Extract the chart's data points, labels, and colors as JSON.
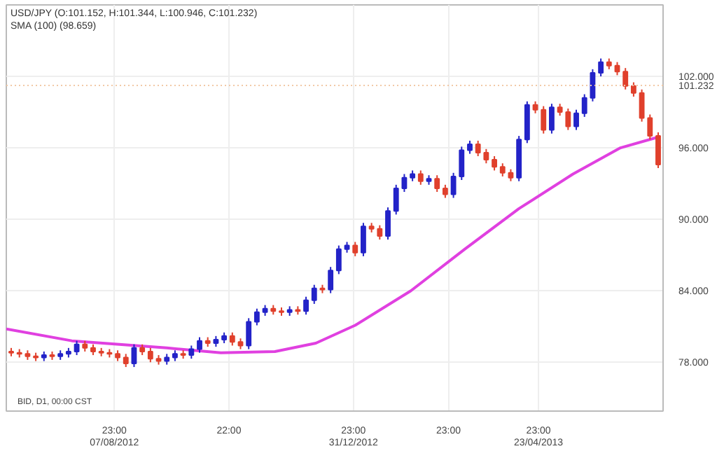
{
  "chart_data": {
    "type": "candlestick",
    "title": "USD/JPY (O:101.152, H:101.344, L:100.946, C:101.232)",
    "subtitle": "SMA (100) (98.659)",
    "annotations": [
      "BID, D1, 00:00 CST"
    ],
    "xlim": [
      "2012-06-03",
      "2013-07-09"
    ],
    "xticks": [
      {
        "value": "2012-08-07T23:00",
        "label": "23:00\n07/08/2012"
      },
      {
        "value": "2012-10-16T22:00",
        "label": "22:00"
      },
      {
        "value": "2012-12-31T23:00",
        "label": "23:00\n31/12/2012"
      },
      {
        "value": "2013-02-27T23:00",
        "label": "23:00"
      },
      {
        "value": "2013-04-23T23:00",
        "label": "23:00\n23/04/2013"
      }
    ],
    "ylim": [
      73.9,
      108
    ],
    "yticks": [
      {
        "value": 78,
        "label": "78.000"
      },
      {
        "value": 84,
        "label": "84.000"
      },
      {
        "value": 90,
        "label": "90.000"
      },
      {
        "value": 96,
        "label": "96.000"
      },
      {
        "value": 102,
        "label": "102.000"
      }
    ],
    "grid": true,
    "ref_lines": [
      {
        "axis": "y",
        "value": 101.232,
        "label": "101.232",
        "color": "#f2c9a6",
        "line_style": "dotted"
      }
    ],
    "series": [
      {
        "x": [
          "2012-06-06",
          "2012-06-11",
          "2012-06-16",
          "2012-06-21",
          "2012-06-26",
          "2012-07-01",
          "2012-07-06",
          "2012-07-11",
          "2012-07-16",
          "2012-07-21",
          "2012-07-26",
          "2012-07-31",
          "2012-08-05",
          "2012-08-10",
          "2012-08-15",
          "2012-08-20",
          "2012-08-25",
          "2012-08-30",
          "2012-09-04",
          "2012-09-09",
          "2012-09-14",
          "2012-09-19",
          "2012-09-24",
          "2012-09-29",
          "2012-10-04",
          "2012-10-09",
          "2012-10-14",
          "2012-10-19",
          "2012-10-24",
          "2012-10-29",
          "2012-11-03",
          "2012-11-08",
          "2012-11-13",
          "2012-11-18",
          "2012-11-23",
          "2012-11-28",
          "2012-12-03",
          "2012-12-08",
          "2012-12-13",
          "2012-12-18",
          "2012-12-23",
          "2012-12-28",
          "2013-01-02",
          "2013-01-07",
          "2013-01-12",
          "2013-01-17",
          "2013-01-22",
          "2013-01-27",
          "2013-02-01",
          "2013-02-06",
          "2013-02-11",
          "2013-02-16",
          "2013-02-21",
          "2013-02-26",
          "2013-03-03",
          "2013-03-08",
          "2013-03-13",
          "2013-03-18",
          "2013-03-23",
          "2013-03-28",
          "2013-04-02",
          "2013-04-07",
          "2013-04-12",
          "2013-04-17",
          "2013-04-22",
          "2013-04-27",
          "2013-05-02",
          "2013-05-07",
          "2013-05-12",
          "2013-05-17",
          "2013-05-22",
          "2013-05-27",
          "2013-06-01",
          "2013-06-06",
          "2013-06-11",
          "2013-06-16",
          "2013-06-21",
          "2013-06-26",
          "2013-07-01",
          "2013-07-06"
        ],
        "ohlc": [
          [
            78.9,
            79.2,
            78.5,
            78.8
          ],
          [
            78.8,
            79.1,
            78.4,
            78.7
          ],
          [
            78.7,
            79.0,
            78.2,
            78.5
          ],
          [
            78.5,
            78.8,
            78.1,
            78.4
          ],
          [
            78.4,
            78.9,
            78.1,
            78.6
          ],
          [
            78.6,
            78.9,
            78.2,
            78.5
          ],
          [
            78.5,
            79.0,
            78.2,
            78.7
          ],
          [
            78.7,
            79.2,
            78.4,
            78.9
          ],
          [
            78.9,
            79.8,
            78.6,
            79.5
          ],
          [
            79.5,
            79.8,
            78.9,
            79.2
          ],
          [
            79.2,
            79.5,
            78.6,
            78.9
          ],
          [
            78.9,
            79.2,
            78.5,
            78.8
          ],
          [
            78.8,
            79.1,
            78.4,
            78.7
          ],
          [
            78.7,
            79.0,
            78.1,
            78.4
          ],
          [
            78.4,
            78.7,
            77.6,
            77.9
          ],
          [
            77.9,
            79.5,
            77.6,
            79.2
          ],
          [
            79.2,
            79.5,
            78.6,
            78.9
          ],
          [
            78.9,
            79.2,
            78.0,
            78.3
          ],
          [
            78.3,
            78.6,
            77.8,
            78.1
          ],
          [
            78.1,
            78.7,
            77.8,
            78.4
          ],
          [
            78.4,
            79.0,
            78.1,
            78.7
          ],
          [
            78.7,
            79.0,
            78.3,
            78.6
          ],
          [
            78.6,
            79.4,
            78.3,
            79.1
          ],
          [
            79.1,
            80.1,
            78.8,
            79.8
          ],
          [
            79.8,
            80.1,
            79.3,
            79.6
          ],
          [
            79.6,
            80.2,
            79.3,
            79.9
          ],
          [
            79.9,
            80.5,
            79.6,
            80.2
          ],
          [
            80.2,
            80.5,
            79.4,
            79.7
          ],
          [
            79.7,
            80.0,
            79.1,
            79.4
          ],
          [
            79.4,
            81.7,
            79.1,
            81.4
          ],
          [
            81.4,
            82.5,
            81.1,
            82.2
          ],
          [
            82.2,
            82.8,
            81.9,
            82.5
          ],
          [
            82.5,
            82.8,
            82.0,
            82.3
          ],
          [
            82.3,
            82.6,
            81.9,
            82.2
          ],
          [
            82.2,
            82.7,
            81.9,
            82.4
          ],
          [
            82.4,
            82.7,
            82.0,
            82.3
          ],
          [
            82.3,
            83.5,
            82.0,
            83.2
          ],
          [
            83.2,
            84.5,
            82.9,
            84.2
          ],
          [
            84.2,
            84.5,
            83.8,
            84.1
          ],
          [
            84.1,
            86.0,
            83.8,
            85.7
          ],
          [
            85.7,
            87.8,
            85.4,
            87.5
          ],
          [
            87.5,
            88.1,
            87.2,
            87.8
          ],
          [
            87.8,
            88.1,
            86.9,
            87.2
          ],
          [
            87.2,
            89.7,
            86.9,
            89.4
          ],
          [
            89.4,
            89.7,
            88.9,
            89.2
          ],
          [
            89.2,
            89.5,
            88.3,
            88.6
          ],
          [
            88.6,
            91.0,
            88.3,
            90.7
          ],
          [
            90.7,
            92.9,
            90.4,
            92.6
          ],
          [
            92.6,
            93.8,
            92.3,
            93.5
          ],
          [
            93.5,
            94.1,
            93.2,
            93.8
          ],
          [
            93.8,
            94.1,
            92.9,
            93.2
          ],
          [
            93.2,
            93.7,
            92.9,
            93.4
          ],
          [
            93.4,
            93.7,
            92.3,
            92.6
          ],
          [
            92.6,
            92.9,
            91.8,
            92.1
          ],
          [
            92.1,
            93.9,
            91.8,
            93.6
          ],
          [
            93.6,
            96.1,
            93.3,
            95.8
          ],
          [
            95.8,
            96.6,
            95.5,
            96.3
          ],
          [
            96.3,
            96.6,
            95.3,
            95.6
          ],
          [
            95.6,
            95.9,
            94.7,
            95.0
          ],
          [
            95.0,
            95.3,
            94.1,
            94.4
          ],
          [
            94.4,
            94.7,
            93.6,
            93.9
          ],
          [
            93.9,
            94.2,
            93.2,
            93.5
          ],
          [
            93.5,
            97.0,
            93.2,
            96.7
          ],
          [
            96.7,
            99.9,
            96.4,
            99.6
          ],
          [
            99.6,
            99.9,
            98.9,
            99.2
          ],
          [
            99.2,
            99.5,
            97.2,
            97.5
          ],
          [
            97.5,
            99.7,
            97.2,
            99.4
          ],
          [
            99.4,
            99.7,
            98.7,
            99.0
          ],
          [
            99.0,
            99.3,
            97.5,
            97.8
          ],
          [
            97.8,
            99.2,
            97.5,
            98.9
          ],
          [
            98.9,
            100.5,
            98.6,
            100.2
          ],
          [
            100.2,
            102.6,
            99.9,
            102.3
          ],
          [
            102.3,
            103.5,
            102.0,
            103.2
          ],
          [
            103.2,
            103.5,
            102.6,
            102.9
          ],
          [
            102.9,
            103.2,
            102.1,
            102.4
          ],
          [
            102.4,
            102.7,
            100.9,
            101.2
          ],
          [
            101.2,
            101.5,
            100.3,
            100.6
          ],
          [
            100.6,
            100.9,
            98.2,
            98.5
          ],
          [
            98.5,
            98.8,
            96.7,
            97.0
          ],
          [
            97.0,
            97.3,
            94.3,
            94.6
          ]
        ],
        "colors": [
          "#e0402c",
          "#e0402c",
          "#e0402c",
          "#e0402c",
          "#2323c8",
          "#e0402c",
          "#2323c8",
          "#2323c8",
          "#2323c8",
          "#e0402c",
          "#e0402c",
          "#e0402c",
          "#e0402c",
          "#e0402c",
          "#e0402c",
          "#2323c8",
          "#e0402c",
          "#e0402c",
          "#e0402c",
          "#2323c8",
          "#2323c8",
          "#e0402c",
          "#2323c8",
          "#2323c8",
          "#e0402c",
          "#2323c8",
          "#2323c8",
          "#e0402c",
          "#e0402c",
          "#2323c8",
          "#2323c8",
          "#2323c8",
          "#e0402c",
          "#e0402c",
          "#2323c8",
          "#e0402c",
          "#2323c8",
          "#2323c8",
          "#e0402c",
          "#2323c8",
          "#2323c8",
          "#2323c8",
          "#e0402c",
          "#2323c8",
          "#e0402c",
          "#e0402c",
          "#2323c8",
          "#2323c8",
          "#2323c8",
          "#2323c8",
          "#e0402c",
          "#2323c8",
          "#e0402c",
          "#e0402c",
          "#2323c8",
          "#2323c8",
          "#2323c8",
          "#e0402c",
          "#e0402c",
          "#e0402c",
          "#e0402c",
          "#e0402c",
          "#2323c8",
          "#2323c8",
          "#e0402c",
          "#e0402c",
          "#2323c8",
          "#e0402c",
          "#e0402c",
          "#2323c8",
          "#2323c8",
          "#2323c8",
          "#2323c8",
          "#e0402c",
          "#e0402c",
          "#e0402c",
          "#e0402c",
          "#e0402c",
          "#e0402c",
          "#e0402c"
        ]
      },
      {
        "type": "line",
        "color": "#e040e0",
        "x": [
          "2012-06-03",
          "2012-07-13",
          "2012-09-09",
          "2012-10-12",
          "2012-11-14",
          "2012-12-09",
          "2013-01-02",
          "2013-02-05",
          "2013-03-10",
          "2013-04-12",
          "2013-05-15",
          "2013-06-13",
          "2013-07-06"
        ],
        "values": [
          80.8,
          79.8,
          79.2,
          78.8,
          78.9,
          79.6,
          81.1,
          84.0,
          87.5,
          90.9,
          93.8,
          96.0,
          96.9
        ]
      }
    ]
  }
}
